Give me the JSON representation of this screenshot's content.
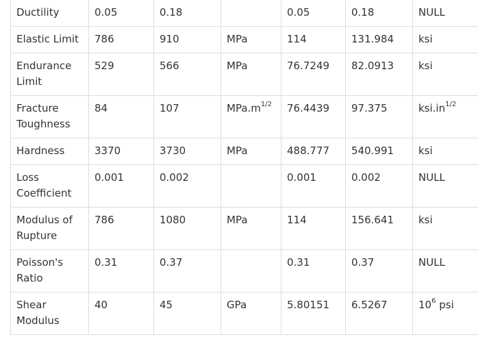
{
  "table": {
    "rows": [
      {
        "property": "Ductility",
        "min_si": "0.05",
        "max_si": "0.18",
        "unit_si": {
          "base": "",
          "sup": ""
        },
        "min_imp": "0.05",
        "max_imp": "0.18",
        "unit_imp": {
          "base": "NULL",
          "sup": ""
        }
      },
      {
        "property": "Elastic Limit",
        "min_si": "786",
        "max_si": "910",
        "unit_si": {
          "base": "MPa",
          "sup": ""
        },
        "min_imp": "114",
        "max_imp": "131.984",
        "unit_imp": {
          "base": "ksi",
          "sup": ""
        }
      },
      {
        "property": "Endurance Limit",
        "min_si": "529",
        "max_si": "566",
        "unit_si": {
          "base": "MPa",
          "sup": ""
        },
        "min_imp": "76.7249",
        "max_imp": "82.0913",
        "unit_imp": {
          "base": "ksi",
          "sup": ""
        }
      },
      {
        "property": "Fracture Toughness",
        "min_si": "84",
        "max_si": "107",
        "unit_si": {
          "base": "MPa.m",
          "sup": "1/2"
        },
        "min_imp": "76.4439",
        "max_imp": "97.375",
        "unit_imp": {
          "base": "ksi.in",
          "sup": "1/2"
        }
      },
      {
        "property": "Hardness",
        "min_si": "3370",
        "max_si": "3730",
        "unit_si": {
          "base": "MPa",
          "sup": ""
        },
        "min_imp": "488.777",
        "max_imp": "540.991",
        "unit_imp": {
          "base": "ksi",
          "sup": ""
        }
      },
      {
        "property": "Loss Coefficient",
        "min_si": "0.001",
        "max_si": "0.002",
        "unit_si": {
          "base": "",
          "sup": ""
        },
        "min_imp": "0.001",
        "max_imp": "0.002",
        "unit_imp": {
          "base": "NULL",
          "sup": ""
        }
      },
      {
        "property": "Modulus of Rupture",
        "min_si": "786",
        "max_si": "1080",
        "unit_si": {
          "base": "MPa",
          "sup": ""
        },
        "min_imp": "114",
        "max_imp": "156.641",
        "unit_imp": {
          "base": "ksi",
          "sup": ""
        }
      },
      {
        "property": "Poisson's Ratio",
        "min_si": "0.31",
        "max_si": "0.37",
        "unit_si": {
          "base": "",
          "sup": ""
        },
        "min_imp": "0.31",
        "max_imp": "0.37",
        "unit_imp": {
          "base": "NULL",
          "sup": ""
        }
      },
      {
        "property": "Shear Modulus",
        "min_si": "40",
        "max_si": "45",
        "unit_si": {
          "base": "GPa",
          "sup": ""
        },
        "min_imp": "5.80151",
        "max_imp": "6.5267",
        "unit_imp": {
          "base": "10",
          "sup": "6",
          "suffix": " psi"
        }
      }
    ]
  }
}
